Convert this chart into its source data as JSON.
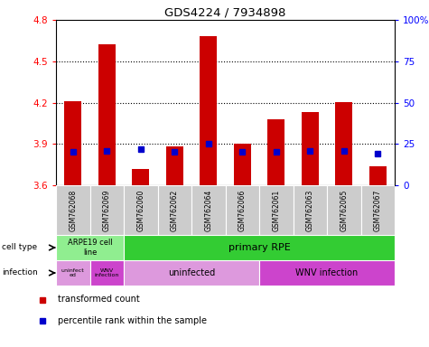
{
  "title": "GDS4224 / 7934898",
  "samples": [
    "GSM762068",
    "GSM762069",
    "GSM762060",
    "GSM762062",
    "GSM762064",
    "GSM762066",
    "GSM762061",
    "GSM762063",
    "GSM762065",
    "GSM762067"
  ],
  "transformed_count": [
    4.21,
    4.62,
    3.72,
    3.88,
    4.68,
    3.9,
    4.08,
    4.13,
    4.2,
    3.74
  ],
  "percentile_rank": [
    20,
    21,
    22,
    20,
    25,
    20,
    20,
    21,
    21,
    19
  ],
  "ylim": [
    3.6,
    4.8
  ],
  "yticks_left": [
    3.6,
    3.9,
    4.2,
    4.5,
    4.8
  ],
  "yticks_right": [
    0,
    25,
    50,
    75,
    100
  ],
  "bar_color": "#cc0000",
  "dot_color": "#0000cc",
  "grid_lines": [
    3.9,
    4.2,
    4.5
  ],
  "cell_type_arpe_color": "#90ee90",
  "cell_type_primary_color": "#33cc33",
  "infection_uninfected_color": "#dd99dd",
  "infection_wnv_color": "#cc44cc",
  "sample_box_color": "#cccccc",
  "legend_bar_label": "transformed count",
  "legend_dot_label": "percentile rank within the sample"
}
